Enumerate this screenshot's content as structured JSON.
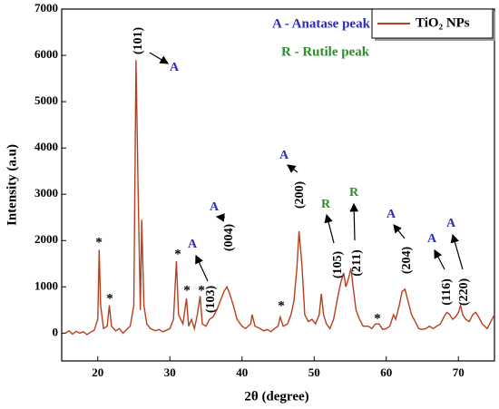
{
  "chart_data": {
    "type": "line",
    "xlabel": "2θ (degree)",
    "ylabel": "Intensity (a.u)",
    "legend_notes": [
      "A - Anatase peak",
      "R - Rutile peak"
    ],
    "annotations": [
      "(101)",
      "A",
      "*",
      "*",
      "*",
      "*",
      "*",
      "*",
      "*",
      "A",
      "(103)",
      "A",
      "(004)",
      "A",
      "(200)",
      "R",
      "(105)",
      "R",
      "(211)",
      "A",
      "(204)",
      "A",
      "(116)",
      "A",
      "(220)"
    ],
    "xlim": [
      15,
      75
    ],
    "ylim": [
      -600,
      7000
    ],
    "xticks": [
      20,
      30,
      40,
      50,
      60,
      70
    ],
    "yticks": [
      0,
      1000,
      2000,
      3000,
      4000,
      5000,
      6000,
      7000
    ],
    "legend": "upper right",
    "x": [
      15.5,
      16,
      16.5,
      17,
      17.5,
      18,
      18.5,
      19,
      19.5,
      20,
      20.2,
      20.4,
      20.8,
      21.3,
      21.6,
      21.9,
      22.5,
      23,
      23.5,
      24,
      24.5,
      25,
      25.3,
      25.6,
      25.9,
      26.1,
      26.4,
      26.8,
      27.3,
      28,
      28.5,
      29,
      29.5,
      30,
      30.5,
      30.9,
      31.2,
      31.8,
      32.3,
      32.6,
      33,
      33.4,
      33.8,
      34.2,
      34.5,
      35,
      35.5,
      36,
      36.5,
      37,
      37.5,
      37.9,
      38.3,
      38.8,
      39.3,
      40,
      40.5,
      41.2,
      41.4,
      41.8,
      42.5,
      43,
      43.5,
      44,
      44.5,
      45,
      45.3,
      45.7,
      46.3,
      46.8,
      47.2,
      47.6,
      47.9,
      48.3,
      48.7,
      49.2,
      49.7,
      50.2,
      50.7,
      51,
      51.3,
      51.7,
      52.2,
      52.7,
      53.3,
      53.7,
      54.1,
      54.4,
      54.8,
      55.1,
      55.4,
      55.8,
      56.3,
      56.8,
      57.5,
      58,
      58.5,
      59,
      59.5,
      60,
      60.5,
      61,
      61.3,
      61.8,
      62.2,
      62.6,
      63,
      63.5,
      64,
      64.5,
      65,
      65.5,
      66,
      66.5,
      67,
      67.5,
      68,
      68.4,
      68.8,
      69.2,
      69.6,
      70,
      70.3,
      70.6,
      71,
      71.5,
      72,
      72.4,
      72.8,
      73.3,
      74,
      74.5,
      75
    ],
    "series": [
      {
        "name": "TiO₂ NPs",
        "color": "#b5401f",
        "values": [
          0,
          50,
          -20,
          40,
          0,
          30,
          -30,
          20,
          60,
          300,
          1800,
          600,
          100,
          150,
          600,
          150,
          50,
          100,
          0,
          80,
          150,
          600,
          5900,
          3000,
          500,
          2450,
          600,
          200,
          100,
          50,
          80,
          30,
          60,
          100,
          300,
          1550,
          400,
          200,
          750,
          150,
          300,
          100,
          400,
          800,
          200,
          150,
          300,
          350,
          500,
          700,
          900,
          1000,
          850,
          600,
          300,
          150,
          100,
          200,
          400,
          150,
          100,
          50,
          80,
          30,
          100,
          150,
          350,
          150,
          200,
          400,
          700,
          1400,
          2200,
          1500,
          400,
          250,
          300,
          200,
          400,
          850,
          400,
          200,
          100,
          300,
          800,
          1100,
          1300,
          1000,
          1200,
          1400,
          1000,
          500,
          300,
          150,
          150,
          100,
          200,
          200,
          80,
          100,
          150,
          400,
          300,
          600,
          900,
          950,
          700,
          400,
          250,
          100,
          80,
          100,
          150,
          100,
          150,
          200,
          350,
          450,
          400,
          300,
          350,
          450,
          600,
          400,
          300,
          250,
          400,
          450,
          350,
          200,
          100,
          250,
          400
        ]
      }
    ]
  }
}
